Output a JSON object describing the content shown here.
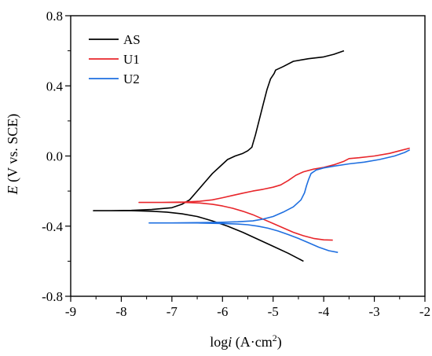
{
  "chart_data": {
    "type": "line",
    "title": "",
    "xlabel_parts": [
      "log",
      "i",
      " (A·cm",
      "2",
      ")"
    ],
    "ylabel_parts": [
      "E",
      " (V vs. SCE)"
    ],
    "xlim": [
      -9,
      -2
    ],
    "ylim": [
      -0.8,
      0.8
    ],
    "x_ticks": [
      -9,
      -8,
      -7,
      -6,
      -5,
      -4,
      -3,
      -2
    ],
    "x_tick_labels": [
      "-9",
      "-8",
      "-7",
      "-6",
      "-5",
      "-4",
      "-3",
      "-2"
    ],
    "y_ticks": [
      -0.8,
      -0.4,
      0.0,
      0.4,
      0.8
    ],
    "y_tick_labels": [
      "-0.8",
      "-0.4",
      "0.0",
      "0.4",
      "0.8"
    ],
    "grid": false,
    "legend_position": "top-left",
    "series": [
      {
        "name": "AS",
        "color": "#000000",
        "points": [
          [
            -4.4,
            -0.6
          ],
          [
            -4.7,
            -0.555
          ],
          [
            -5.0,
            -0.515
          ],
          [
            -5.3,
            -0.475
          ],
          [
            -5.6,
            -0.435
          ],
          [
            -5.9,
            -0.4
          ],
          [
            -6.2,
            -0.37
          ],
          [
            -6.5,
            -0.345
          ],
          [
            -6.8,
            -0.33
          ],
          [
            -7.1,
            -0.32
          ],
          [
            -7.4,
            -0.315
          ],
          [
            -7.8,
            -0.312
          ],
          [
            -8.2,
            -0.312
          ],
          [
            -8.55,
            -0.312
          ],
          [
            -8.2,
            -0.312
          ],
          [
            -7.8,
            -0.31
          ],
          [
            -7.4,
            -0.305
          ],
          [
            -7.0,
            -0.295
          ],
          [
            -6.8,
            -0.275
          ],
          [
            -6.65,
            -0.25
          ],
          [
            -6.5,
            -0.2
          ],
          [
            -6.35,
            -0.15
          ],
          [
            -6.2,
            -0.1
          ],
          [
            -6.05,
            -0.06
          ],
          [
            -5.9,
            -0.02
          ],
          [
            -5.75,
            0.0
          ],
          [
            -5.6,
            0.015
          ],
          [
            -5.5,
            0.03
          ],
          [
            -5.42,
            0.05
          ],
          [
            -5.4,
            0.07
          ],
          [
            -5.35,
            0.12
          ],
          [
            -5.28,
            0.2
          ],
          [
            -5.2,
            0.29
          ],
          [
            -5.12,
            0.38
          ],
          [
            -5.05,
            0.44
          ],
          [
            -4.98,
            0.47
          ],
          [
            -4.95,
            0.49
          ],
          [
            -4.8,
            0.51
          ],
          [
            -4.6,
            0.54
          ],
          [
            -4.3,
            0.555
          ],
          [
            -4.0,
            0.565
          ],
          [
            -3.8,
            0.58
          ],
          [
            -3.6,
            0.6
          ]
        ]
      },
      {
        "name": "U1",
        "color": "#e8262b",
        "points": [
          [
            -3.82,
            -0.48
          ],
          [
            -4.0,
            -0.478
          ],
          [
            -4.2,
            -0.47
          ],
          [
            -4.4,
            -0.455
          ],
          [
            -4.6,
            -0.435
          ],
          [
            -4.8,
            -0.41
          ],
          [
            -5.0,
            -0.385
          ],
          [
            -5.2,
            -0.36
          ],
          [
            -5.4,
            -0.335
          ],
          [
            -5.6,
            -0.315
          ],
          [
            -5.8,
            -0.298
          ],
          [
            -6.0,
            -0.285
          ],
          [
            -6.2,
            -0.275
          ],
          [
            -6.45,
            -0.268
          ],
          [
            -6.75,
            -0.265
          ],
          [
            -7.2,
            -0.265
          ],
          [
            -7.65,
            -0.265
          ],
          [
            -7.2,
            -0.265
          ],
          [
            -6.75,
            -0.262
          ],
          [
            -6.45,
            -0.258
          ],
          [
            -6.2,
            -0.25
          ],
          [
            -6.0,
            -0.238
          ],
          [
            -5.8,
            -0.225
          ],
          [
            -5.6,
            -0.212
          ],
          [
            -5.4,
            -0.2
          ],
          [
            -5.2,
            -0.19
          ],
          [
            -5.0,
            -0.178
          ],
          [
            -4.85,
            -0.165
          ],
          [
            -4.7,
            -0.14
          ],
          [
            -4.55,
            -0.11
          ],
          [
            -4.4,
            -0.09
          ],
          [
            -4.2,
            -0.075
          ],
          [
            -4.0,
            -0.065
          ],
          [
            -3.8,
            -0.05
          ],
          [
            -3.6,
            -0.03
          ],
          [
            -3.5,
            -0.015
          ],
          [
            -3.3,
            -0.01
          ],
          [
            -3.0,
            0.0
          ],
          [
            -2.7,
            0.015
          ],
          [
            -2.5,
            0.03
          ],
          [
            -2.3,
            0.045
          ]
        ]
      },
      {
        "name": "U2",
        "color": "#1f6fe0",
        "points": [
          [
            -3.72,
            -0.55
          ],
          [
            -3.9,
            -0.54
          ],
          [
            -4.1,
            -0.52
          ],
          [
            -4.3,
            -0.495
          ],
          [
            -4.5,
            -0.47
          ],
          [
            -4.7,
            -0.448
          ],
          [
            -4.9,
            -0.428
          ],
          [
            -5.1,
            -0.412
          ],
          [
            -5.3,
            -0.4
          ],
          [
            -5.5,
            -0.392
          ],
          [
            -5.7,
            -0.388
          ],
          [
            -6.0,
            -0.385
          ],
          [
            -6.5,
            -0.382
          ],
          [
            -7.0,
            -0.382
          ],
          [
            -7.45,
            -0.382
          ],
          [
            -7.0,
            -0.382
          ],
          [
            -6.5,
            -0.38
          ],
          [
            -6.0,
            -0.378
          ],
          [
            -5.7,
            -0.375
          ],
          [
            -5.4,
            -0.37
          ],
          [
            -5.2,
            -0.36
          ],
          [
            -5.0,
            -0.345
          ],
          [
            -4.8,
            -0.32
          ],
          [
            -4.6,
            -0.29
          ],
          [
            -4.45,
            -0.25
          ],
          [
            -4.38,
            -0.21
          ],
          [
            -4.34,
            -0.17
          ],
          [
            -4.3,
            -0.135
          ],
          [
            -4.25,
            -0.1
          ],
          [
            -4.15,
            -0.08
          ],
          [
            -4.0,
            -0.068
          ],
          [
            -3.8,
            -0.058
          ],
          [
            -3.5,
            -0.045
          ],
          [
            -3.2,
            -0.035
          ],
          [
            -2.9,
            -0.02
          ],
          [
            -2.6,
            0.0
          ],
          [
            -2.4,
            0.02
          ],
          [
            -2.3,
            0.035
          ]
        ]
      }
    ]
  }
}
